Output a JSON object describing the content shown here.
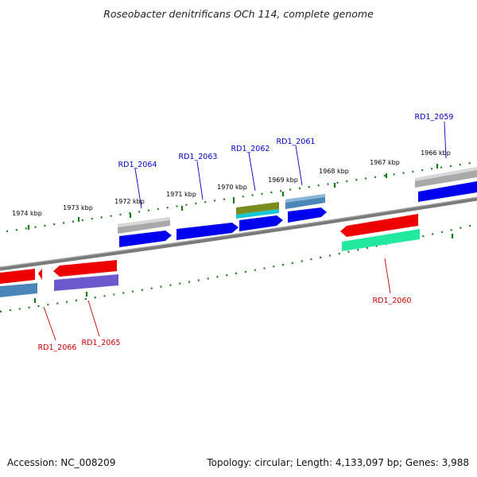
{
  "title": "Roseobacter denitrificans OCh 114, complete genome",
  "footer": {
    "accession": "Accession: NC_008209",
    "topology": "Topology: circular; Length: 4,133,097 bp; Genes: 3,988"
  },
  "colors": {
    "forward_label": "#0000cc",
    "reverse_label": "#cc0000",
    "tick": "#1a7a1a",
    "backbone": "#808080"
  },
  "kbp_labels": [
    {
      "text": "1974 kbp",
      "kbp": 1974
    },
    {
      "text": "1973 kbp",
      "kbp": 1973
    },
    {
      "text": "1972 kbp",
      "kbp": 1972
    },
    {
      "text": "1971 kbp",
      "kbp": 1971
    },
    {
      "text": "1970 kbp",
      "kbp": 1970
    },
    {
      "text": "1969 kbp",
      "kbp": 1969
    },
    {
      "text": "1968 kbp",
      "kbp": 1968
    },
    {
      "text": "1967 kbp",
      "kbp": 1967
    },
    {
      "text": "1966 kbp",
      "kbp": 1966
    }
  ],
  "genes": [
    {
      "name": "RD1_2059",
      "strand": "forward"
    },
    {
      "name": "RD1_2060",
      "strand": "reverse"
    },
    {
      "name": "RD1_2061",
      "strand": "forward"
    },
    {
      "name": "RD1_2062",
      "strand": "forward"
    },
    {
      "name": "RD1_2063",
      "strand": "forward"
    },
    {
      "name": "RD1_2064",
      "strand": "forward"
    },
    {
      "name": "RD1_2065",
      "strand": "reverse"
    },
    {
      "name": "RD1_2066",
      "strand": "reverse"
    }
  ]
}
